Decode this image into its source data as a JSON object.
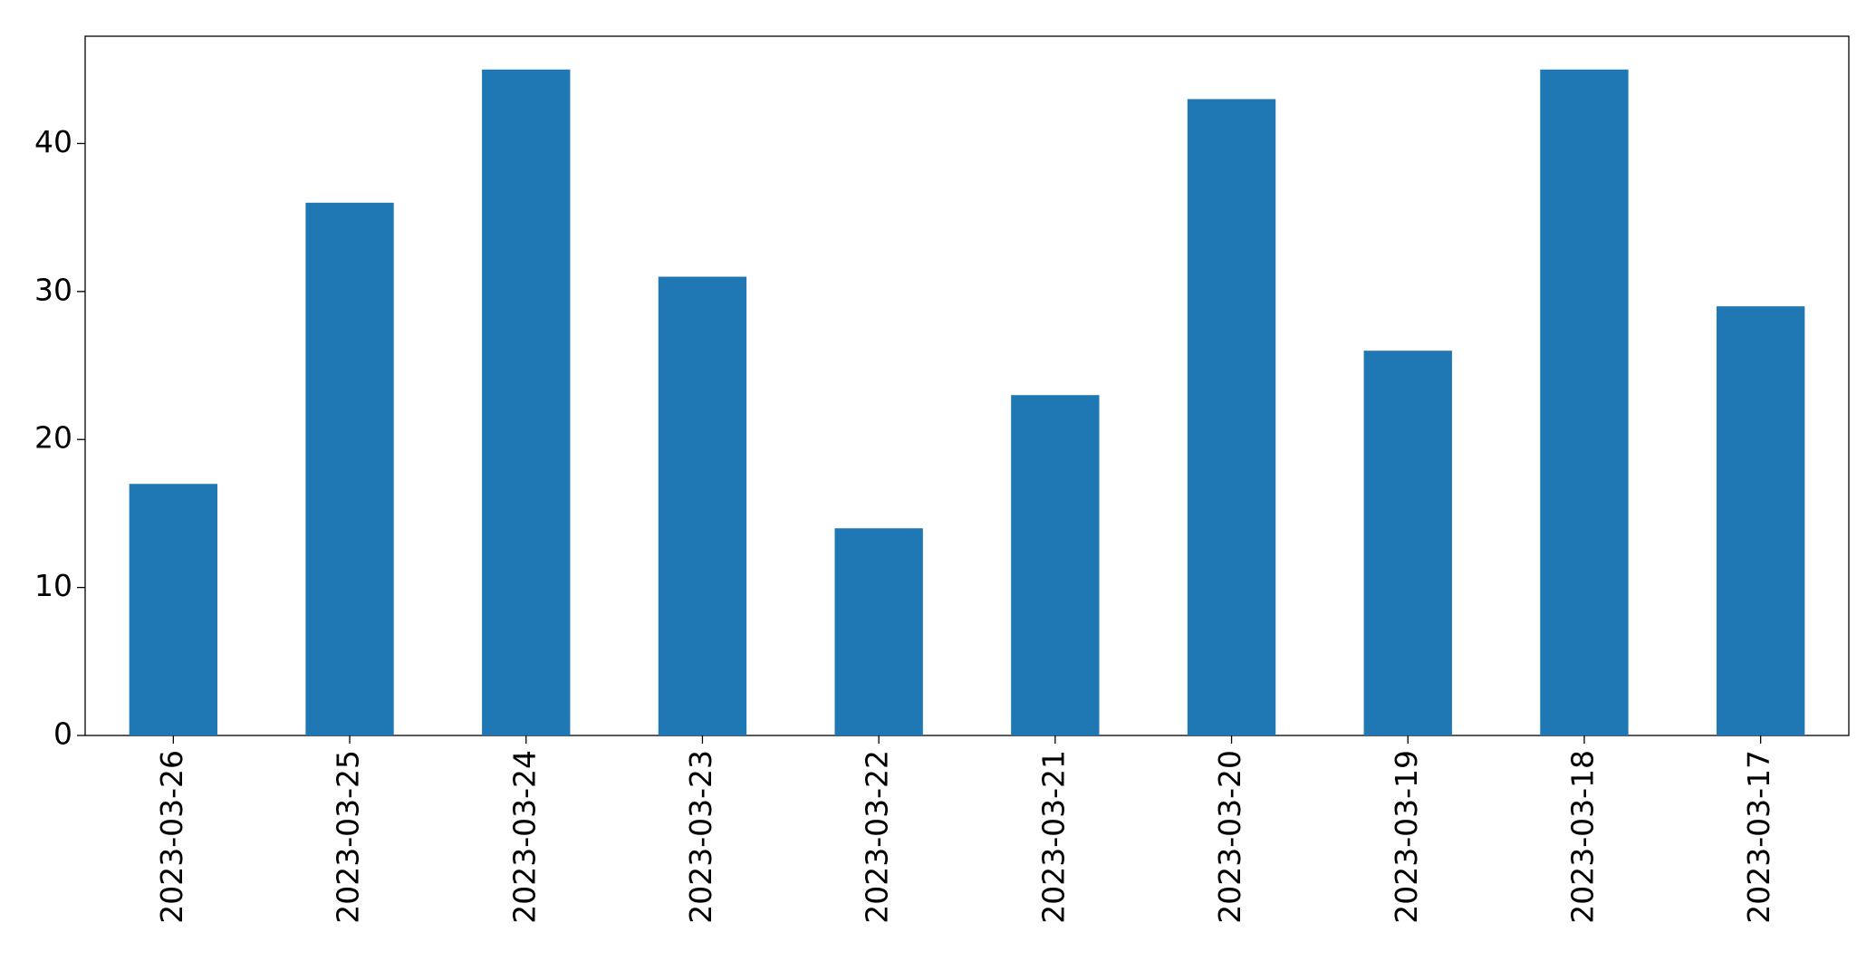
{
  "chart_data": {
    "type": "bar",
    "categories": [
      "2023-03-26",
      "2023-03-25",
      "2023-03-24",
      "2023-03-23",
      "2023-03-22",
      "2023-03-21",
      "2023-03-20",
      "2023-03-19",
      "2023-03-18",
      "2023-03-17"
    ],
    "values": [
      17,
      36,
      45,
      31,
      14,
      23,
      43,
      26,
      45,
      29
    ],
    "color": "#1f77b4",
    "ylim": [
      0,
      47.25
    ],
    "yticks": [
      0,
      10,
      20,
      30,
      40
    ],
    "grid": false
  }
}
